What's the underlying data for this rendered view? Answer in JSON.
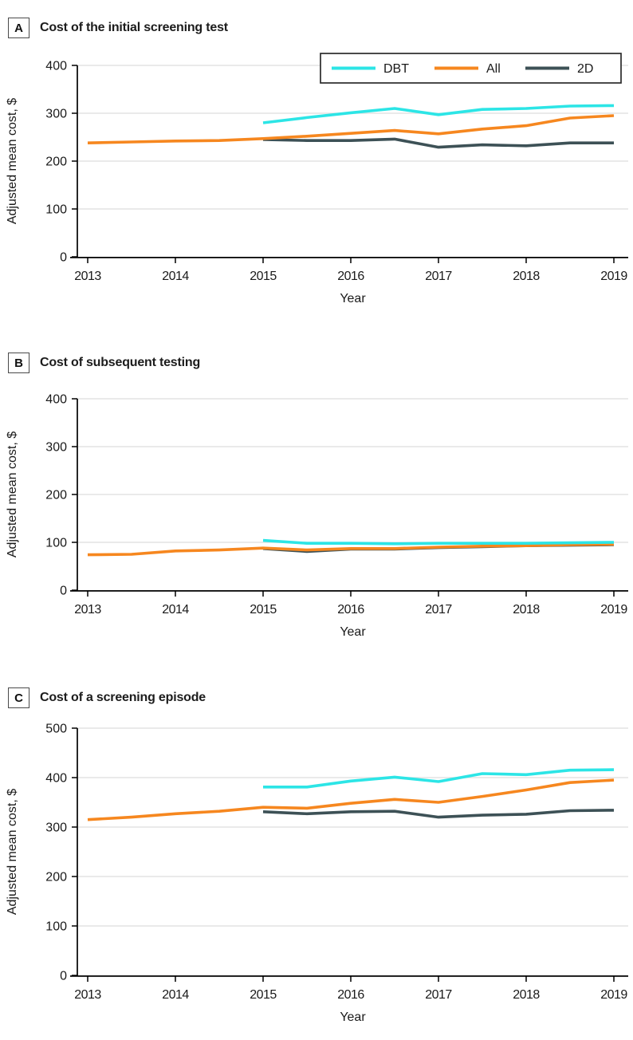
{
  "figure": {
    "panels": [
      {
        "label": "A",
        "title": "Cost of the initial screening test"
      },
      {
        "label": "B",
        "title": "Cost of subsequent testing"
      },
      {
        "label": "C",
        "title": "Cost of a screening episode"
      }
    ]
  },
  "colors": {
    "dbt": "#2ce5e6",
    "all": "#f6871f",
    "twoD": "#3d5156",
    "grid": "#e3e3e3",
    "axis": "#000000",
    "text": "#1a1a1a",
    "legend_border": "#2b2b2b"
  },
  "chart_data": [
    {
      "type": "line",
      "panel": "A",
      "title": "Cost of the initial screening test",
      "xlabel": "Year",
      "ylabel": "Adjusted mean cost, $",
      "ylim": [
        0,
        400
      ],
      "yticks": [
        0,
        100,
        200,
        300,
        400
      ],
      "xticks": [
        2013,
        2014,
        2015,
        2016,
        2017,
        2018,
        2019
      ],
      "grid": true,
      "legend": {
        "visible": true,
        "position": "top-right",
        "entries": [
          "DBT",
          "All",
          "2D"
        ]
      },
      "series": [
        {
          "name": "DBT",
          "color": "#2ce5e6",
          "x": [
            2015,
            2015.5,
            2016,
            2016.5,
            2017,
            2017.5,
            2018,
            2018.5,
            2019
          ],
          "y": [
            280,
            291,
            301,
            310,
            297,
            308,
            310,
            315,
            316
          ]
        },
        {
          "name": "All",
          "color": "#f6871f",
          "x": [
            2013,
            2013.5,
            2014,
            2014.5,
            2015,
            2015.5,
            2016,
            2016.5,
            2017,
            2017.5,
            2018,
            2018.5,
            2019
          ],
          "y": [
            238,
            240,
            242,
            243,
            247,
            252,
            258,
            264,
            257,
            267,
            274,
            290,
            295
          ]
        },
        {
          "name": "2D",
          "color": "#3d5156",
          "x": [
            2015,
            2015.5,
            2016,
            2016.5,
            2017,
            2017.5,
            2018,
            2018.5,
            2019
          ],
          "y": [
            245,
            243,
            243,
            246,
            229,
            234,
            232,
            238,
            238
          ]
        }
      ]
    },
    {
      "type": "line",
      "panel": "B",
      "title": "Cost of subsequent testing",
      "xlabel": "Year",
      "ylabel": "Adjusted mean cost, $",
      "ylim": [
        0,
        400
      ],
      "yticks": [
        0,
        100,
        200,
        300,
        400
      ],
      "xticks": [
        2013,
        2014,
        2015,
        2016,
        2017,
        2018,
        2019
      ],
      "grid": true,
      "legend": {
        "visible": false
      },
      "series": [
        {
          "name": "DBT",
          "color": "#2ce5e6",
          "x": [
            2015,
            2015.5,
            2016,
            2016.5,
            2017,
            2017.5,
            2018,
            2018.5,
            2019
          ],
          "y": [
            104,
            98,
            98,
            97,
            98,
            98,
            98,
            99,
            100
          ]
        },
        {
          "name": "All",
          "color": "#f6871f",
          "x": [
            2013,
            2013.5,
            2014,
            2014.5,
            2015,
            2015.5,
            2016,
            2016.5,
            2017,
            2017.5,
            2018,
            2018.5,
            2019
          ],
          "y": [
            74,
            75,
            82,
            84,
            88,
            84,
            87,
            87,
            90,
            92,
            93,
            95,
            96
          ]
        },
        {
          "name": "2D",
          "color": "#3d5156",
          "x": [
            2015,
            2015.5,
            2016,
            2016.5,
            2017,
            2017.5,
            2018,
            2018.5,
            2019
          ],
          "y": [
            87,
            81,
            86,
            86,
            89,
            91,
            93,
            94,
            95
          ]
        }
      ]
    },
    {
      "type": "line",
      "panel": "C",
      "title": "Cost of a screening episode",
      "xlabel": "Year",
      "ylabel": "Adjusted mean cost, $",
      "ylim": [
        0,
        500
      ],
      "yticks": [
        0,
        100,
        200,
        300,
        400,
        500
      ],
      "xticks": [
        2013,
        2014,
        2015,
        2016,
        2017,
        2018,
        2019
      ],
      "grid": true,
      "legend": {
        "visible": false
      },
      "series": [
        {
          "name": "DBT",
          "color": "#2ce5e6",
          "x": [
            2015,
            2015.5,
            2016,
            2016.5,
            2017,
            2017.5,
            2018,
            2018.5,
            2019
          ],
          "y": [
            381,
            381,
            393,
            401,
            392,
            408,
            406,
            415,
            416
          ]
        },
        {
          "name": "All",
          "color": "#f6871f",
          "x": [
            2013,
            2013.5,
            2014,
            2014.5,
            2015,
            2015.5,
            2016,
            2016.5,
            2017,
            2017.5,
            2018,
            2018.5,
            2019
          ],
          "y": [
            315,
            320,
            327,
            332,
            340,
            338,
            348,
            356,
            350,
            362,
            375,
            390,
            395
          ]
        },
        {
          "name": "2D",
          "color": "#3d5156",
          "x": [
            2015,
            2015.5,
            2016,
            2016.5,
            2017,
            2017.5,
            2018,
            2018.5,
            2019
          ],
          "y": [
            331,
            327,
            331,
            332,
            320,
            324,
            326,
            333,
            334
          ]
        }
      ]
    }
  ]
}
